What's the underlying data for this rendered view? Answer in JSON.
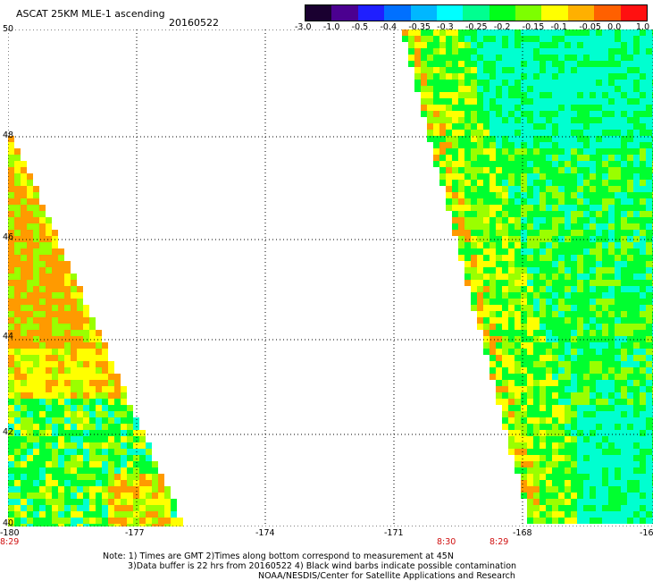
{
  "header": {
    "title": "ASCAT 25KM MLE-1 ascending",
    "date": "20160522"
  },
  "colorbar": {
    "tick_labels": [
      "-3.0",
      "-1.0",
      "-0.5",
      "-0.4",
      "-0.35",
      "-0.3",
      "-0.25",
      "-0.2",
      "-0.15",
      "-0.1",
      "-0.05",
      "0.0",
      "1.0"
    ],
    "colors": [
      "#1a0030",
      "#4b0090",
      "#1f1fff",
      "#0070ff",
      "#00b7ff",
      "#00ffff",
      "#00ff90",
      "#00ff1a",
      "#7dff00",
      "#ffff00",
      "#ffb000",
      "#ff6000",
      "#ff1010"
    ]
  },
  "map": {
    "lat_labels": [
      "50",
      "48",
      "46",
      "44",
      "42",
      "40"
    ],
    "lon_labels": [
      "-180",
      "-177",
      "-174",
      "-171",
      "-168",
      "-16"
    ],
    "time_labels": [
      {
        "text": "8:29",
        "lon": -180.0
      },
      {
        "text": "8:30",
        "lon": -169.5
      },
      {
        "text": "8:29",
        "lon": -168.5
      }
    ],
    "colors": {
      "orange": "#ff9a00",
      "yellow": "#ffff00",
      "lime": "#9aff00",
      "green": "#00ff30",
      "cyan": "#00ffd0",
      "red": "#d01010"
    }
  },
  "footer": {
    "line1": "Note: 1) Times are GMT 2)Times along bottom correspond to measurement at 45N",
    "line2": "3)Data buffer is 22 hrs from 20160522 4) Black wind barbs indicate possible contamination",
    "line3": "NOAA/NESDIS/Center for Satellite Applications and Research"
  }
}
